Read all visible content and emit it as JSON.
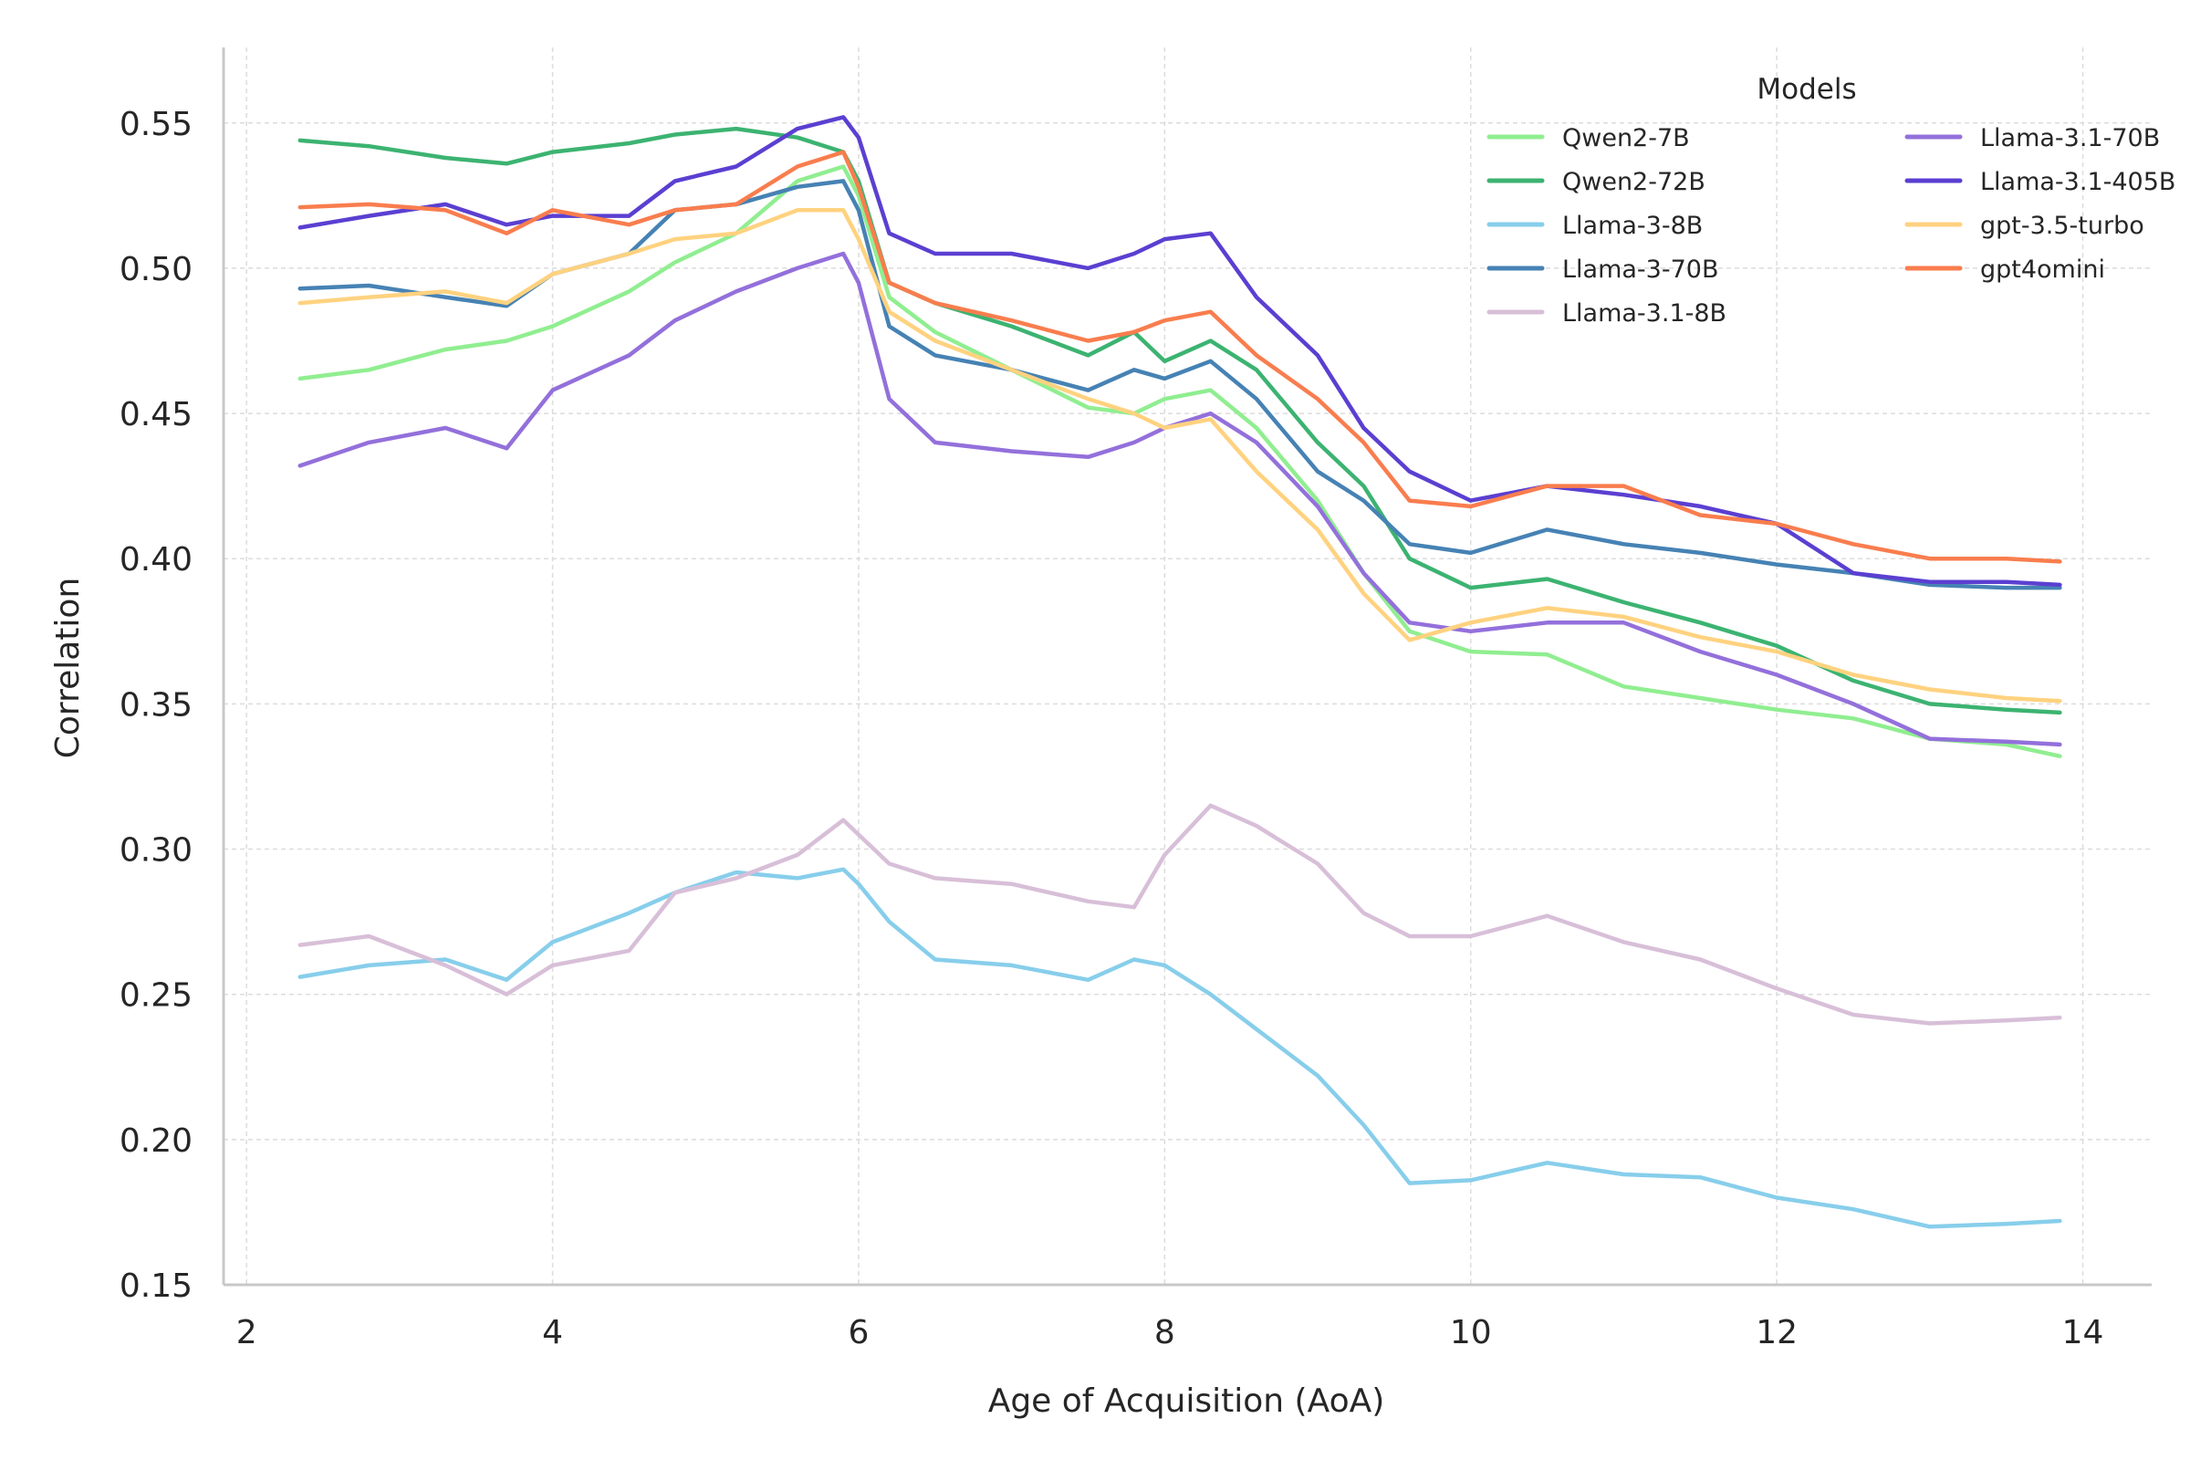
{
  "chart_data": {
    "type": "line",
    "title": "",
    "xlabel": "Age of Acquisition (AoA)",
    "ylabel": "Correlation",
    "xlim": [
      1.85,
      14.45
    ],
    "ylim": [
      0.15,
      0.576
    ],
    "xticks": [
      2,
      4,
      6,
      8,
      10,
      12,
      14
    ],
    "yticks": [
      0.15,
      0.2,
      0.25,
      0.3,
      0.35,
      0.4,
      0.45,
      0.5,
      0.55
    ],
    "xtick_labels": [
      "2",
      "4",
      "6",
      "8",
      "10",
      "12",
      "14"
    ],
    "ytick_labels": [
      "0.15",
      "0.20",
      "0.25",
      "0.30",
      "0.35",
      "0.40",
      "0.45",
      "0.50",
      "0.55"
    ],
    "grid": true,
    "legend": {
      "title": "Models",
      "placement": "top-right",
      "columns": 2
    },
    "x": [
      2.35,
      2.8,
      3.3,
      3.7,
      4.0,
      4.5,
      4.8,
      5.2,
      5.6,
      5.9,
      6.0,
      6.2,
      6.5,
      7.0,
      7.5,
      7.8,
      8.0,
      8.3,
      8.6,
      9.0,
      9.3,
      9.6,
      10.0,
      10.5,
      11.0,
      11.5,
      12.0,
      12.5,
      13.0,
      13.5,
      13.85
    ],
    "series": [
      {
        "name": "Qwen2-7B",
        "color": "#90ee90",
        "values": [
          0.462,
          0.465,
          0.472,
          0.475,
          0.48,
          0.492,
          0.502,
          0.512,
          0.53,
          0.535,
          0.525,
          0.49,
          0.478,
          0.465,
          0.452,
          0.45,
          0.455,
          0.458,
          0.445,
          0.42,
          0.395,
          0.375,
          0.368,
          0.367,
          0.356,
          0.352,
          0.348,
          0.345,
          0.338,
          0.336,
          0.332
        ]
      },
      {
        "name": "Qwen2-72B",
        "color": "#3cb371",
        "values": [
          0.544,
          0.542,
          0.538,
          0.536,
          0.54,
          0.543,
          0.546,
          0.548,
          0.545,
          0.54,
          0.53,
          0.495,
          0.488,
          0.48,
          0.47,
          0.478,
          0.468,
          0.475,
          0.465,
          0.44,
          0.425,
          0.4,
          0.39,
          0.393,
          0.385,
          0.378,
          0.37,
          0.358,
          0.35,
          0.348,
          0.347
        ]
      },
      {
        "name": "Llama-3-8B",
        "color": "#87ceeb",
        "values": [
          0.256,
          0.26,
          0.262,
          0.255,
          0.268,
          0.278,
          0.285,
          0.292,
          0.29,
          0.293,
          0.288,
          0.275,
          0.262,
          0.26,
          0.255,
          0.262,
          0.26,
          0.25,
          0.238,
          0.222,
          0.205,
          0.185,
          0.186,
          0.192,
          0.188,
          0.187,
          0.18,
          0.176,
          0.17,
          0.171,
          0.172
        ]
      },
      {
        "name": "Llama-3-70B",
        "color": "#4682b4",
        "values": [
          0.493,
          0.494,
          0.49,
          0.487,
          0.498,
          0.505,
          0.52,
          0.522,
          0.528,
          0.53,
          0.52,
          0.48,
          0.47,
          0.465,
          0.458,
          0.465,
          0.462,
          0.468,
          0.455,
          0.43,
          0.42,
          0.405,
          0.402,
          0.41,
          0.405,
          0.402,
          0.398,
          0.395,
          0.391,
          0.39,
          0.39
        ]
      },
      {
        "name": "Llama-3.1-8B",
        "color": "#d8bfd8",
        "values": [
          0.267,
          0.27,
          0.26,
          0.25,
          0.26,
          0.265,
          0.285,
          0.29,
          0.298,
          0.31,
          0.305,
          0.295,
          0.29,
          0.288,
          0.282,
          0.28,
          0.298,
          0.315,
          0.308,
          0.295,
          0.278,
          0.27,
          0.27,
          0.277,
          0.268,
          0.262,
          0.252,
          0.243,
          0.24,
          0.241,
          0.242
        ]
      },
      {
        "name": "Llama-3.1-70B",
        "color": "#9370db",
        "values": [
          0.432,
          0.44,
          0.445,
          0.438,
          0.458,
          0.47,
          0.482,
          0.492,
          0.5,
          0.505,
          0.495,
          0.455,
          0.44,
          0.437,
          0.435,
          0.44,
          0.445,
          0.45,
          0.44,
          0.418,
          0.395,
          0.378,
          0.375,
          0.378,
          0.378,
          0.368,
          0.36,
          0.35,
          0.338,
          0.337,
          0.336
        ]
      },
      {
        "name": "Llama-3.1-405B",
        "color": "#5b3fd1",
        "values": [
          0.514,
          0.518,
          0.522,
          0.515,
          0.518,
          0.518,
          0.53,
          0.535,
          0.548,
          0.552,
          0.545,
          0.512,
          0.505,
          0.505,
          0.5,
          0.505,
          0.51,
          0.512,
          0.49,
          0.47,
          0.445,
          0.43,
          0.42,
          0.425,
          0.422,
          0.418,
          0.412,
          0.395,
          0.392,
          0.392,
          0.391
        ]
      },
      {
        "name": "gpt-3.5-turbo",
        "color": "#ffd27f",
        "values": [
          0.488,
          0.49,
          0.492,
          0.488,
          0.498,
          0.505,
          0.51,
          0.512,
          0.52,
          0.52,
          0.51,
          0.485,
          0.475,
          0.465,
          0.455,
          0.45,
          0.445,
          0.448,
          0.43,
          0.41,
          0.388,
          0.372,
          0.378,
          0.383,
          0.38,
          0.373,
          0.368,
          0.36,
          0.355,
          0.352,
          0.351
        ]
      },
      {
        "name": "gpt4omini",
        "color": "#f97d4e",
        "values": [
          0.521,
          0.522,
          0.52,
          0.512,
          0.52,
          0.515,
          0.52,
          0.522,
          0.535,
          0.54,
          0.528,
          0.495,
          0.488,
          0.482,
          0.475,
          0.478,
          0.482,
          0.485,
          0.47,
          0.455,
          0.44,
          0.42,
          0.418,
          0.425,
          0.425,
          0.415,
          0.412,
          0.405,
          0.4,
          0.4,
          0.399
        ]
      }
    ]
  }
}
